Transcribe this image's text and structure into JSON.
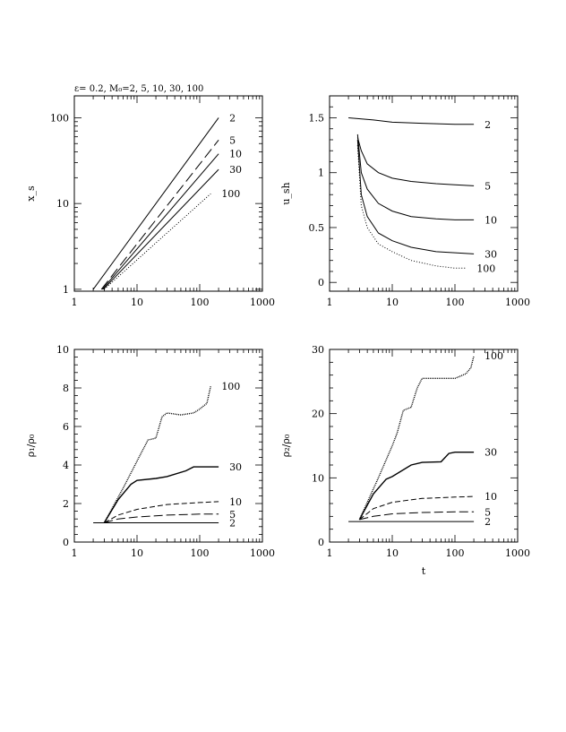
{
  "figure_title": "ε= 0.2, M₀=2, 5, 10, 30, 100",
  "chart_data": [
    {
      "type": "line",
      "id": "xs",
      "title": "ε= 0.2, M₀=2, 5, 10, 30, 100",
      "xlabel": "",
      "ylabel": "x_s",
      "xscale": "log",
      "yscale": "log",
      "xlim": [
        1,
        1000
      ],
      "ylim": [
        0.95,
        180
      ],
      "xticks": [
        1,
        10,
        100,
        1000
      ],
      "xtick_labels": [
        "1",
        "10",
        "100",
        "1000"
      ],
      "yticks": [
        1,
        10,
        100
      ],
      "ytick_labels": [
        "1",
        "10",
        "100"
      ],
      "series": [
        {
          "name": "2",
          "label": "2",
          "dash": "",
          "x": [
            2,
            200
          ],
          "y": [
            1,
            100
          ]
        },
        {
          "name": "5",
          "label": "5",
          "dash": "12 5",
          "x": [
            2.7,
            200
          ],
          "y": [
            1,
            55
          ]
        },
        {
          "name": "10",
          "label": "10",
          "dash": "",
          "x": [
            2.8,
            200
          ],
          "y": [
            1,
            38
          ]
        },
        {
          "name": "30",
          "label": "30",
          "dash": "",
          "x": [
            2.9,
            200
          ],
          "y": [
            1,
            25
          ]
        },
        {
          "name": "100",
          "label": "100",
          "dash": "1 2",
          "x": [
            3,
            150
          ],
          "y": [
            1,
            13
          ]
        }
      ]
    },
    {
      "type": "line",
      "id": "ush",
      "title": "",
      "xlabel": "",
      "ylabel": "u_sh",
      "xscale": "log",
      "yscale": "linear",
      "xlim": [
        1,
        1000
      ],
      "ylim": [
        -0.08,
        1.7
      ],
      "xticks": [
        1,
        10,
        100,
        1000
      ],
      "xtick_labels": [
        "1",
        "10",
        "100",
        "1000"
      ],
      "yticks": [
        0,
        0.5,
        1,
        1.5
      ],
      "ytick_labels": [
        "0",
        "0.5",
        "1",
        "1.5"
      ],
      "series": [
        {
          "name": "2",
          "label": "2",
          "dash": "",
          "x": [
            2,
            5,
            10,
            30,
            100,
            200
          ],
          "y": [
            1.5,
            1.48,
            1.46,
            1.45,
            1.44,
            1.44
          ]
        },
        {
          "name": "5",
          "label": "5",
          "dash": "",
          "x": [
            2.8,
            3.2,
            4,
            6,
            10,
            20,
            50,
            100,
            200
          ],
          "y": [
            1.32,
            1.2,
            1.08,
            1.0,
            0.95,
            0.92,
            0.9,
            0.89,
            0.88
          ]
        },
        {
          "name": "10",
          "label": "10",
          "dash": "",
          "x": [
            2.8,
            3.2,
            4,
            6,
            10,
            20,
            50,
            100,
            200
          ],
          "y": [
            1.35,
            1.0,
            0.85,
            0.72,
            0.65,
            0.6,
            0.58,
            0.57,
            0.57
          ]
        },
        {
          "name": "30",
          "label": "30",
          "dash": "",
          "x": [
            2.8,
            3.2,
            4,
            6,
            10,
            20,
            50,
            100,
            200
          ],
          "y": [
            1.3,
            0.8,
            0.6,
            0.45,
            0.38,
            0.32,
            0.28,
            0.27,
            0.26
          ]
        },
        {
          "name": "100",
          "label": "100",
          "dash": "1 2",
          "x": [
            2.8,
            3.2,
            4,
            6,
            10,
            20,
            50,
            100,
            150
          ],
          "y": [
            1.25,
            0.7,
            0.5,
            0.35,
            0.28,
            0.2,
            0.15,
            0.13,
            0.13
          ]
        }
      ]
    },
    {
      "type": "line",
      "id": "rho1",
      "title": "",
      "xlabel": "",
      "ylabel": "ρ₁/ρ₀",
      "xscale": "log",
      "yscale": "linear",
      "xlim": [
        1,
        1000
      ],
      "ylim": [
        0,
        10
      ],
      "xticks": [
        1,
        10,
        100,
        1000
      ],
      "xtick_labels": [
        "1",
        "10",
        "100",
        "1000"
      ],
      "yticks": [
        0,
        2,
        4,
        6,
        8,
        10
      ],
      "ytick_labels": [
        "0",
        "2",
        "4",
        "6",
        "8",
        "10"
      ],
      "series": [
        {
          "name": "2",
          "label": "2",
          "dash": "",
          "x": [
            2,
            3,
            200
          ],
          "y": [
            1,
            1,
            1
          ]
        },
        {
          "name": "5",
          "label": "5",
          "dash": "10 4",
          "x": [
            3,
            5,
            10,
            30,
            100,
            200
          ],
          "y": [
            1,
            1.2,
            1.3,
            1.4,
            1.45,
            1.45
          ]
        },
        {
          "name": "10",
          "label": "10",
          "dash": "6 3",
          "x": [
            3,
            5,
            10,
            30,
            100,
            200
          ],
          "y": [
            1,
            1.4,
            1.7,
            1.95,
            2.05,
            2.1
          ]
        },
        {
          "name": "30",
          "label": "30",
          "dash": "",
          "x": [
            3,
            5,
            8,
            10,
            20,
            30,
            60,
            80,
            100,
            200
          ],
          "y": [
            1,
            2.2,
            3.0,
            3.2,
            3.3,
            3.4,
            3.7,
            3.9,
            3.9,
            3.9
          ]
        },
        {
          "name": "100",
          "label": "100",
          "dash": "1 1",
          "x": [
            3,
            6,
            10,
            12,
            15,
            20,
            25,
            30,
            50,
            80,
            100,
            130,
            150
          ],
          "y": [
            1,
            2.8,
            4.2,
            4.7,
            5.3,
            5.4,
            6.5,
            6.7,
            6.6,
            6.7,
            6.9,
            7.2,
            8.1
          ]
        }
      ]
    },
    {
      "type": "line",
      "id": "rho2",
      "title": "",
      "xlabel": "t",
      "ylabel": "ρ₂/ρ₀",
      "xscale": "log",
      "yscale": "linear",
      "xlim": [
        1,
        1000
      ],
      "ylim": [
        0,
        30
      ],
      "xticks": [
        1,
        10,
        100,
        1000
      ],
      "xtick_labels": [
        "1",
        "10",
        "100",
        "1000"
      ],
      "yticks": [
        0,
        10,
        20,
        30
      ],
      "ytick_labels": [
        "0",
        "10",
        "20",
        "30"
      ],
      "series": [
        {
          "name": "2",
          "label": "2",
          "dash": "",
          "x": [
            2,
            3,
            200
          ],
          "y": [
            3.2,
            3.2,
            3.2
          ]
        },
        {
          "name": "5",
          "label": "5",
          "dash": "10 4",
          "x": [
            3,
            5,
            10,
            30,
            100,
            200
          ],
          "y": [
            3.5,
            4.0,
            4.4,
            4.6,
            4.7,
            4.7
          ]
        },
        {
          "name": "10",
          "label": "10",
          "dash": "6 3",
          "x": [
            3,
            5,
            10,
            30,
            100,
            200
          ],
          "y": [
            3.5,
            5.2,
            6.2,
            6.8,
            7.0,
            7.1
          ]
        },
        {
          "name": "30",
          "label": "30",
          "dash": "",
          "x": [
            3,
            5,
            8,
            10,
            20,
            30,
            60,
            80,
            100,
            200
          ],
          "y": [
            3.5,
            7.5,
            9.8,
            10.2,
            12.0,
            12.4,
            12.5,
            13.8,
            14.0,
            14.0
          ]
        },
        {
          "name": "100",
          "label": "100",
          "dash": "1 1",
          "x": [
            3,
            6,
            10,
            12,
            15,
            20,
            25,
            30,
            60,
            100,
            150,
            180,
            200
          ],
          "y": [
            3.5,
            10,
            15,
            17,
            20.5,
            21,
            24,
            25.5,
            25.5,
            25.5,
            26.2,
            27.2,
            29
          ]
        }
      ]
    }
  ]
}
